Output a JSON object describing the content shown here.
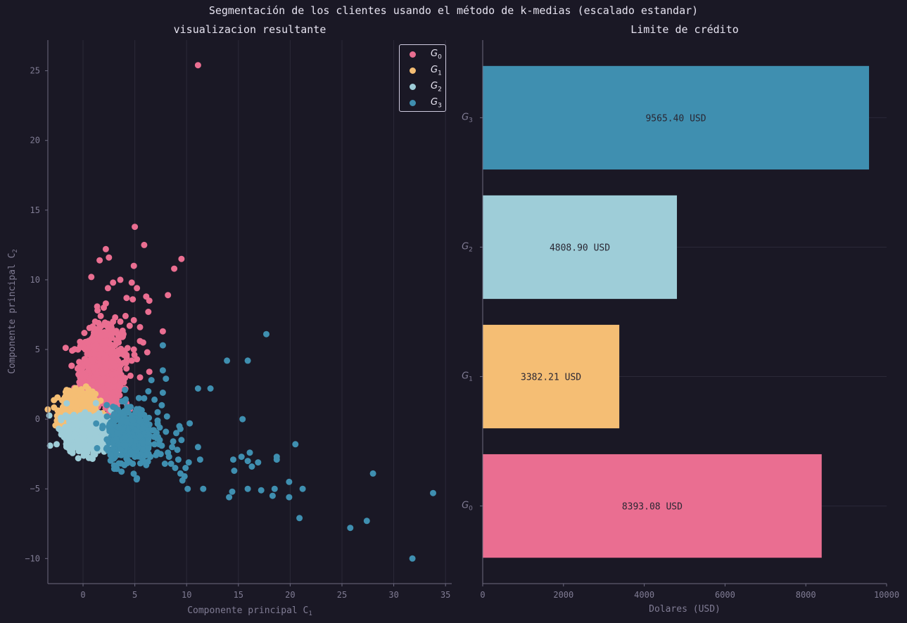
{
  "suptitle": "Segmentación de los clientes usando el método de k-medias (escalado estandar)",
  "colors": {
    "background": "#1a1825",
    "G0": "#ea6e91",
    "G1": "#f5be74",
    "G2": "#9ecdd8",
    "G3": "#3f8fb0",
    "axis": "#6d6a80",
    "grid": "#2b2938",
    "tick_text": "#807c94"
  },
  "chart_data": [
    {
      "type": "scatter",
      "title": "visualizacion resultante",
      "xlabel": "Componente principal C",
      "xlabel_sub": "1",
      "ylabel": "Componente principal C",
      "ylabel_sub": "2",
      "xlim": [
        -3.4,
        35.6
      ],
      "ylim": [
        -11.8,
        27.2
      ],
      "xticks": [
        0,
        5,
        10,
        15,
        20,
        25,
        30,
        35
      ],
      "yticks": [
        -10,
        -5,
        0,
        5,
        10,
        15,
        20,
        25
      ],
      "ytick_labels": [
        "−10",
        "−5",
        "0",
        "5",
        "10",
        "15",
        "20",
        "25"
      ],
      "grid": "vertical",
      "legend_position": "top-right",
      "series": [
        {
          "name": "G",
          "sub": "0",
          "color": "#ea6e91",
          "points": [
            [
              11.1,
              25.4
            ],
            [
              5.0,
              13.8
            ],
            [
              5.9,
              12.5
            ],
            [
              2.2,
              12.2
            ],
            [
              2.5,
              11.6
            ],
            [
              1.6,
              11.4
            ],
            [
              9.5,
              11.5
            ],
            [
              4.9,
              11.0
            ],
            [
              8.8,
              10.8
            ],
            [
              0.8,
              10.2
            ],
            [
              3.6,
              10.0
            ],
            [
              2.9,
              9.8
            ],
            [
              4.7,
              9.8
            ],
            [
              5.2,
              9.4
            ],
            [
              2.4,
              9.4
            ],
            [
              8.2,
              8.9
            ],
            [
              4.2,
              8.7
            ],
            [
              4.8,
              8.6
            ],
            [
              6.4,
              8.5
            ],
            [
              6.1,
              8.8
            ],
            [
              2.2,
              8.3
            ],
            [
              1.4,
              7.8
            ],
            [
              2.0,
              8.0
            ],
            [
              6.3,
              7.7
            ],
            [
              4.1,
              7.4
            ],
            [
              3.1,
              7.3
            ],
            [
              7.7,
              6.3
            ],
            [
              5.5,
              6.6
            ],
            [
              4.5,
              6.7
            ],
            [
              1.5,
              6.9
            ],
            [
              5.5,
              5.6
            ],
            [
              5.8,
              5.5
            ],
            [
              4.9,
              5.0
            ],
            [
              6.2,
              4.8
            ],
            [
              4.3,
              5.1
            ],
            [
              4.7,
              4.2
            ],
            [
              1.0,
              6.5
            ],
            [
              2.6,
              5.0
            ],
            [
              6.4,
              3.4
            ],
            [
              5.5,
              3.0
            ],
            [
              3.9,
              6.1
            ],
            [
              4.9,
              7.1
            ],
            [
              2.9,
              7.0
            ],
            [
              3.6,
              7.0
            ],
            [
              1.7,
              7.4
            ],
            [
              2.4,
              6.6
            ],
            [
              2.0,
              6.0
            ],
            [
              3.8,
              5.9
            ],
            [
              3.4,
              6.1
            ],
            [
              2.4,
              5.0
            ],
            [
              5.2,
              4.3
            ],
            [
              4.2,
              4.6
            ],
            [
              0.3,
              5.0
            ]
          ],
          "clusters": [
            {
              "cx": 1.8,
              "cy": 3.5,
              "sx": 1.0,
              "sy": 1.4,
              "n": 900
            }
          ]
        },
        {
          "name": "G",
          "sub": "1",
          "color": "#f5be74",
          "points": [],
          "clusters": [
            {
              "cx": -0.4,
              "cy": 0.6,
              "sx": 0.8,
              "sy": 0.6,
              "n": 700
            }
          ]
        },
        {
          "name": "G",
          "sub": "2",
          "color": "#9ecdd8",
          "points": [],
          "clusters": [
            {
              "cx": 0.8,
              "cy": -1.0,
              "sx": 1.2,
              "sy": 0.6,
              "n": 900
            }
          ]
        },
        {
          "name": "G",
          "sub": "3",
          "color": "#3f8fb0",
          "points": [
            [
              33.8,
              -5.3
            ],
            [
              31.8,
              -10.0
            ],
            [
              28.0,
              -3.9
            ],
            [
              27.4,
              -7.3
            ],
            [
              25.8,
              -7.8
            ],
            [
              21.2,
              -5.0
            ],
            [
              20.9,
              -7.1
            ],
            [
              20.5,
              -1.8
            ],
            [
              19.9,
              -4.5
            ],
            [
              19.9,
              -5.6
            ],
            [
              18.7,
              -2.7
            ],
            [
              18.7,
              -2.9
            ],
            [
              18.5,
              -5.0
            ],
            [
              18.3,
              -5.5
            ],
            [
              17.7,
              6.1
            ],
            [
              17.2,
              -5.1
            ],
            [
              16.9,
              -3.1
            ],
            [
              16.3,
              -3.4
            ],
            [
              16.1,
              -2.4
            ],
            [
              15.9,
              -3.0
            ],
            [
              15.9,
              -5.0
            ],
            [
              15.9,
              4.2
            ],
            [
              15.4,
              0.0
            ],
            [
              15.3,
              -2.7
            ],
            [
              14.6,
              -3.7
            ],
            [
              14.5,
              -2.9
            ],
            [
              14.4,
              -5.2
            ],
            [
              14.1,
              -5.6
            ],
            [
              13.9,
              4.2
            ],
            [
              12.3,
              2.2
            ],
            [
              11.6,
              -5.0
            ],
            [
              11.3,
              -2.9
            ],
            [
              11.1,
              -2.0
            ],
            [
              11.1,
              2.2
            ],
            [
              10.3,
              -0.3
            ],
            [
              10.2,
              -3.1
            ],
            [
              10.1,
              -5.0
            ],
            [
              9.9,
              -3.5
            ],
            [
              9.8,
              -4.1
            ],
            [
              9.6,
              -4.4
            ],
            [
              9.4,
              -3.9
            ],
            [
              9.2,
              -2.9
            ],
            [
              9.1,
              -2.2
            ],
            [
              9.0,
              -1.0
            ],
            [
              8.9,
              -3.5
            ],
            [
              8.6,
              -2.0
            ],
            [
              8.2,
              -2.4
            ],
            [
              7.9,
              -3.2
            ],
            [
              7.7,
              3.5
            ],
            [
              7.7,
              1.9
            ],
            [
              7.7,
              5.3
            ],
            [
              7.6,
              1.0
            ],
            [
              7.2,
              -0.1
            ],
            [
              6.9,
              -1.8
            ],
            [
              6.6,
              2.8
            ],
            [
              6.3,
              2.0
            ],
            [
              5.8,
              -3.0
            ],
            [
              7.4,
              -1.5
            ],
            [
              8.5,
              -3.2
            ],
            [
              7.5,
              -2.5
            ],
            [
              6.5,
              -2.7
            ],
            [
              9.3,
              -0.5
            ],
            [
              9.5,
              -1.5
            ],
            [
              8.1,
              0.2
            ],
            [
              6.7,
              -0.8
            ],
            [
              5.5,
              -1.2
            ],
            [
              5.9,
              1.5
            ],
            [
              6.9,
              1.4
            ],
            [
              7.2,
              0.5
            ],
            [
              5.0,
              -2.7
            ],
            [
              4.8,
              -3.2
            ],
            [
              4.0,
              -3.3
            ],
            [
              8.0,
              2.9
            ],
            [
              9.4,
              -0.7
            ],
            [
              8.7,
              -1.6
            ],
            [
              6.3,
              -2.1
            ],
            [
              6.1,
              -3.3
            ],
            [
              7.4,
              -0.6
            ],
            [
              5.9,
              0.3
            ],
            [
              8.3,
              -2.7
            ],
            [
              8.0,
              -0.9
            ],
            [
              7.6,
              -1.9
            ]
          ],
          "clusters": [
            {
              "cx": 4.5,
              "cy": -1.2,
              "sx": 1.1,
              "sy": 1.0,
              "n": 420
            }
          ]
        }
      ]
    },
    {
      "type": "bar",
      "orientation": "horizontal",
      "title": "Limite de crédito",
      "xlabel": "Dolares (USD)",
      "xlim": [
        0,
        10000
      ],
      "xticks": [
        0,
        2000,
        4000,
        6000,
        8000,
        10000
      ],
      "grid": "horizontal",
      "categories": [
        {
          "label": "G",
          "sub": "0"
        },
        {
          "label": "G",
          "sub": "1"
        },
        {
          "label": "G",
          "sub": "2"
        },
        {
          "label": "G",
          "sub": "3"
        }
      ],
      "values": [
        8393.08,
        3382.21,
        4808.9,
        9565.4
      ],
      "data_labels": [
        "8393.08 USD",
        "3382.21 USD",
        "4808.90 USD",
        "9565.40 USD"
      ],
      "colors": [
        "#ea6e91",
        "#f5be74",
        "#9ecdd8",
        "#3f8fb0"
      ]
    }
  ]
}
